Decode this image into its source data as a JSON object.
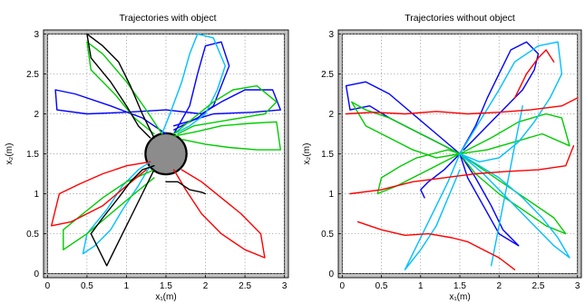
{
  "chart_data": [
    {
      "type": "line",
      "title": "Trajectories with object",
      "xlabel": "x₁(m)",
      "ylabel": "x₂(m)",
      "xlim": [
        -0.05,
        3.05
      ],
      "ylim": [
        -0.05,
        3.05
      ],
      "xticks": [
        0,
        0.5,
        1,
        1.5,
        2,
        2.5,
        3
      ],
      "yticks": [
        0,
        0.5,
        1,
        1.5,
        2,
        2.5,
        3
      ],
      "xtick_labels": [
        "0",
        "0.5",
        "1",
        "1.5",
        "2",
        "2.5",
        "3"
      ],
      "ytick_labels": [
        "0",
        "0.5",
        "1",
        "1.5",
        "2",
        "2.5",
        "3"
      ],
      "grid": true,
      "walls": true,
      "wall_color": "#c3c3c3",
      "obstacle": {
        "cx": 1.5,
        "cy": 1.5,
        "r": 0.26,
        "color": "#8c8c8c"
      },
      "series": [
        {
          "color": "#0000ff",
          "x": [
            1.5,
            1.2,
            0.8,
            0.35,
            0.1,
            0.12,
            0.5,
            1.0,
            1.5,
            1.95,
            2.2,
            2.5,
            2.85,
            2.95,
            2.6,
            2.1,
            1.6
          ],
          "y": [
            1.75,
            1.95,
            2.1,
            2.25,
            2.3,
            2.05,
            2.0,
            2.02,
            2.05,
            2.0,
            2.15,
            2.3,
            2.3,
            2.05,
            2.02,
            2.0,
            1.85
          ]
        },
        {
          "color": "#0000ff",
          "x": [
            1.6,
            1.8,
            1.9,
            2.0,
            2.2,
            2.3,
            2.2,
            2.1,
            1.9,
            1.6
          ],
          "y": [
            1.75,
            2.1,
            2.5,
            2.85,
            2.9,
            2.6,
            2.35,
            2.1,
            1.95,
            1.8
          ]
        },
        {
          "color": "#00bfff",
          "x": [
            1.45,
            1.55,
            1.7,
            1.8,
            1.9,
            2.1,
            2.25,
            2.15,
            2.0,
            1.8,
            1.6
          ],
          "y": [
            1.75,
            2.0,
            2.4,
            2.75,
            3.0,
            2.95,
            2.6,
            2.3,
            2.0,
            1.85,
            1.75
          ]
        },
        {
          "color": "#00bfff",
          "x": [
            1.3,
            1.15,
            0.95,
            0.8,
            0.6,
            0.45,
            0.5,
            0.75,
            0.95,
            1.15,
            1.3
          ],
          "y": [
            1.35,
            1.1,
            0.8,
            0.55,
            0.35,
            0.25,
            0.5,
            0.8,
            1.1,
            1.3,
            1.4
          ]
        },
        {
          "color": "#00cc00",
          "x": [
            1.6,
            1.85,
            2.1,
            2.35,
            2.65,
            2.9,
            2.75,
            2.45,
            2.15,
            1.85,
            1.65
          ],
          "y": [
            1.75,
            1.95,
            2.15,
            2.3,
            2.35,
            2.15,
            2.0,
            1.95,
            1.9,
            1.85,
            1.75
          ]
        },
        {
          "color": "#00cc00",
          "x": [
            1.6,
            1.9,
            2.2,
            2.55,
            2.9,
            2.95,
            2.65,
            2.3,
            2.0,
            1.7
          ],
          "y": [
            1.72,
            1.78,
            1.85,
            1.88,
            1.9,
            1.55,
            1.55,
            1.58,
            1.62,
            1.68
          ]
        },
        {
          "color": "#00cc00",
          "x": [
            1.35,
            1.0,
            0.7,
            0.45,
            0.2,
            0.2,
            0.5,
            0.8,
            1.1,
            1.35
          ],
          "y": [
            1.3,
            1.15,
            0.95,
            0.75,
            0.55,
            0.3,
            0.5,
            0.75,
            1.0,
            1.2
          ]
        },
        {
          "color": "#00cc00",
          "x": [
            1.45,
            1.25,
            1.0,
            0.7,
            0.5,
            0.55,
            0.85,
            1.1,
            1.35
          ],
          "y": [
            1.75,
            2.05,
            2.4,
            2.75,
            2.9,
            2.55,
            2.25,
            1.95,
            1.75
          ]
        },
        {
          "color": "#ff0000",
          "x": [
            1.3,
            1.0,
            0.7,
            0.4,
            0.15,
            0.05,
            0.3,
            0.7,
            1.0,
            1.25
          ],
          "y": [
            1.4,
            1.35,
            1.25,
            1.12,
            1.0,
            0.6,
            0.65,
            0.85,
            1.1,
            1.3
          ]
        },
        {
          "color": "#ff0000",
          "x": [
            1.6,
            1.75,
            1.95,
            2.2,
            2.5,
            2.75,
            2.7,
            2.45,
            2.2,
            1.95,
            1.7
          ],
          "y": [
            1.3,
            1.05,
            0.75,
            0.5,
            0.3,
            0.2,
            0.5,
            0.75,
            0.95,
            1.15,
            1.3
          ]
        },
        {
          "color": "#000000",
          "x": [
            1.35,
            1.2,
            1.05,
            0.9,
            0.7,
            0.5,
            0.55,
            0.8,
            1.0,
            1.15,
            1.3
          ],
          "y": [
            1.7,
            2.0,
            2.35,
            2.65,
            2.85,
            3.0,
            2.7,
            2.4,
            2.1,
            1.85,
            1.7
          ]
        },
        {
          "color": "#000000",
          "x": [
            1.35,
            1.2,
            1.05,
            0.9,
            0.75,
            0.55,
            0.7,
            0.9,
            1.05,
            1.2,
            1.35
          ],
          "y": [
            1.3,
            1.0,
            0.7,
            0.4,
            0.1,
            0.5,
            0.7,
            0.95,
            1.15,
            1.3,
            1.35
          ]
        },
        {
          "color": "#000000",
          "x": [
            1.5,
            1.65,
            1.8,
            1.95,
            2.0
          ],
          "y": [
            1.15,
            1.15,
            1.05,
            1.02,
            1.0
          ]
        }
      ]
    },
    {
      "type": "line",
      "title": "Trajectories without object",
      "xlabel": "x₁(m)",
      "ylabel": "x₂(m)",
      "xlim": [
        -0.05,
        3.05
      ],
      "ylim": [
        -0.05,
        3.05
      ],
      "xticks": [
        0,
        0.5,
        1,
        1.5,
        2,
        2.5,
        3
      ],
      "yticks": [
        0,
        0.5,
        1,
        1.5,
        2,
        2.5,
        3
      ],
      "xtick_labels": [
        "0",
        "0.5",
        "1",
        "1.5",
        "2",
        "2.5",
        "3"
      ],
      "ytick_labels": [
        "0",
        "0.5",
        "1",
        "1.5",
        "2",
        "2.5",
        "3"
      ],
      "grid": true,
      "walls": true,
      "wall_color": "#c3c3c3",
      "series": [
        {
          "color": "#0000ff",
          "x": [
            1.5,
            1.2,
            0.9,
            0.6,
            0.3,
            0.05,
            0.1,
            0.35,
            0.6,
            0.9,
            1.2,
            1.5
          ],
          "y": [
            1.5,
            1.75,
            2.0,
            2.25,
            2.4,
            2.35,
            2.05,
            2.1,
            1.95,
            1.8,
            1.65,
            1.5
          ]
        },
        {
          "color": "#0000ff",
          "x": [
            1.5,
            1.7,
            1.85,
            2.0,
            2.15,
            2.35,
            2.5,
            2.45,
            2.3,
            2.05,
            1.8,
            1.55
          ],
          "y": [
            1.5,
            1.85,
            2.2,
            2.5,
            2.8,
            2.9,
            2.75,
            2.55,
            2.3,
            2.05,
            1.8,
            1.55
          ]
        },
        {
          "color": "#0000ff",
          "x": [
            1.5,
            1.7,
            1.9,
            2.05,
            2.25,
            2.0,
            1.8,
            1.6,
            1.5
          ],
          "y": [
            1.5,
            1.2,
            0.85,
            0.55,
            0.35,
            0.5,
            0.85,
            1.2,
            1.5
          ]
        },
        {
          "color": "#0000ff",
          "x": [
            1.5,
            1.3,
            1.1,
            1.0,
            1.05
          ],
          "y": [
            1.5,
            1.3,
            1.15,
            1.05,
            0.95
          ]
        },
        {
          "color": "#00cc00",
          "x": [
            1.5,
            1.2,
            0.9,
            0.6,
            0.3,
            0.12,
            0.3,
            0.6,
            0.9,
            1.2,
            1.5
          ],
          "y": [
            1.5,
            1.65,
            1.8,
            1.95,
            2.05,
            2.15,
            1.85,
            1.7,
            1.55,
            1.45,
            1.5
          ]
        },
        {
          "color": "#00cc00",
          "x": [
            1.5,
            1.8,
            2.1,
            2.4,
            2.7,
            2.85,
            2.6,
            2.3,
            2.0,
            1.7,
            1.5
          ],
          "y": [
            1.5,
            1.3,
            1.1,
            0.9,
            0.7,
            0.5,
            0.6,
            0.8,
            1.0,
            1.25,
            1.5
          ]
        },
        {
          "color": "#00cc00",
          "x": [
            1.5,
            1.9,
            2.25,
            2.6,
            2.8,
            2.9,
            2.55,
            2.2,
            1.85,
            1.5
          ],
          "y": [
            1.5,
            1.7,
            1.9,
            2.0,
            1.95,
            1.6,
            1.75,
            1.65,
            1.55,
            1.5
          ]
        },
        {
          "color": "#00cc00",
          "x": [
            1.5,
            1.3,
            1.1,
            0.9,
            0.7,
            0.45,
            0.5,
            0.75,
            0.95,
            1.15,
            1.35,
            1.5
          ],
          "y": [
            1.5,
            1.4,
            1.3,
            1.2,
            1.1,
            1.0,
            1.2,
            1.35,
            1.45,
            1.5,
            1.55,
            1.5
          ]
        },
        {
          "color": "#00bfff",
          "x": [
            1.5,
            1.75,
            2.0,
            2.2,
            2.5,
            2.75,
            2.8,
            2.65,
            2.45,
            2.25,
            2.0,
            1.75,
            1.5
          ],
          "y": [
            1.5,
            1.9,
            2.3,
            2.65,
            2.85,
            2.9,
            2.5,
            2.2,
            1.9,
            1.65,
            1.45,
            1.4,
            1.5
          ]
        },
        {
          "color": "#00bfff",
          "x": [
            1.5,
            1.8,
            2.1,
            2.4,
            2.7,
            2.9,
            2.75,
            2.55,
            2.3,
            2.0,
            1.75,
            1.5
          ],
          "y": [
            1.5,
            1.25,
            0.95,
            0.65,
            0.35,
            0.2,
            0.45,
            0.7,
            0.95,
            1.2,
            1.35,
            1.5
          ]
        },
        {
          "color": "#00bfff",
          "x": [
            1.5,
            1.35,
            1.2,
            1.05,
            0.9,
            0.8,
            1.0,
            1.2,
            1.35,
            1.5
          ],
          "y": [
            1.5,
            1.15,
            0.85,
            0.55,
            0.25,
            0.05,
            0.3,
            0.6,
            0.95,
            1.3
          ]
        },
        {
          "color": "#00bfff",
          "x": [
            1.9,
            2.0,
            2.1,
            2.2,
            2.3
          ],
          "y": [
            0.1,
            0.6,
            1.1,
            1.6,
            2.1
          ]
        },
        {
          "color": "#ff0000",
          "x": [
            0.05,
            0.4,
            0.8,
            1.2,
            1.6,
            2.0,
            2.4,
            2.8,
            3.0
          ],
          "y": [
            2.0,
            2.02,
            2.0,
            2.03,
            2.0,
            2.02,
            2.05,
            2.1,
            2.2
          ]
        },
        {
          "color": "#ff0000",
          "x": [
            0.1,
            0.5,
            0.9,
            1.3,
            1.7,
            2.1,
            2.5,
            2.85,
            2.95
          ],
          "y": [
            1.0,
            1.05,
            1.15,
            1.2,
            1.25,
            1.28,
            1.3,
            1.35,
            1.6
          ]
        },
        {
          "color": "#ff0000",
          "x": [
            0.2,
            0.5,
            0.8,
            1.1,
            1.4,
            1.6,
            1.8,
            2.0,
            2.2
          ],
          "y": [
            0.65,
            0.55,
            0.48,
            0.5,
            0.45,
            0.4,
            0.3,
            0.2,
            0.05
          ]
        },
        {
          "color": "#ff0000",
          "x": [
            2.2,
            2.35,
            2.5,
            2.6,
            2.7
          ],
          "y": [
            2.2,
            2.5,
            2.7,
            2.8,
            2.65
          ]
        }
      ]
    }
  ]
}
